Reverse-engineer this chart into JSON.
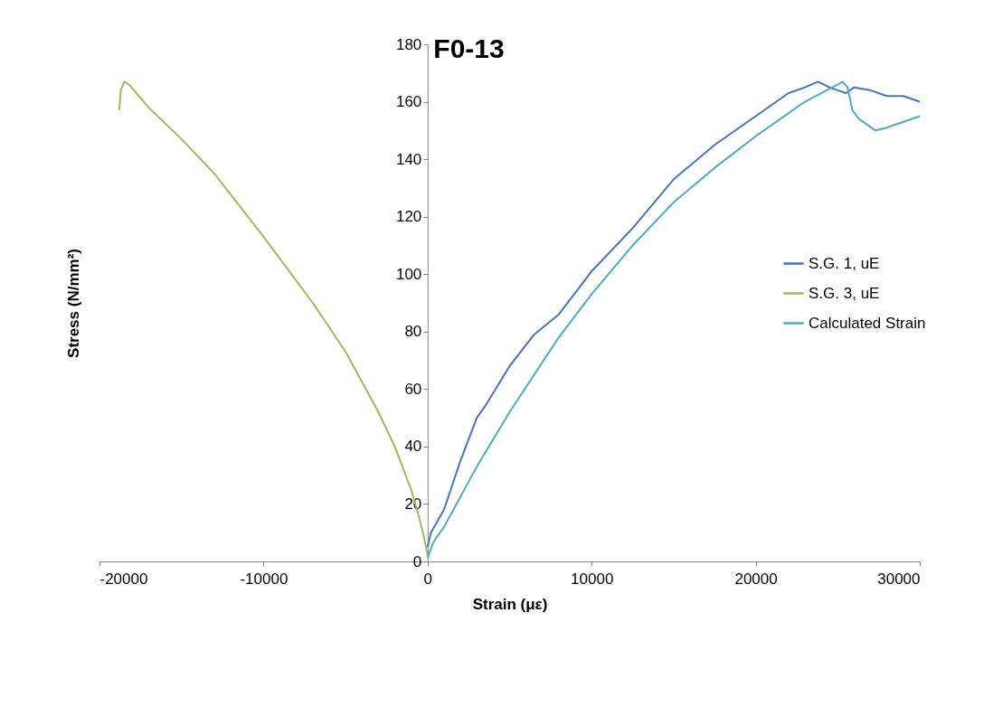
{
  "chart_data": {
    "type": "line",
    "title": "F0-13",
    "xlabel": "Strain (με)",
    "ylabel": "Stress (N/mm²)",
    "xlim": [
      -20000,
      30000
    ],
    "xticks": [
      -20000,
      -10000,
      0,
      10000,
      20000,
      30000
    ],
    "ylim": [
      0,
      180
    ],
    "yticks": [
      0,
      20,
      40,
      60,
      80,
      100,
      120,
      140,
      160,
      180
    ],
    "grid": false,
    "legend": "right",
    "marker": "none",
    "line_style": "solid",
    "series": [
      {
        "name": "S.G.  1, uE",
        "color": "#4472c4",
        "x": [
          0,
          200,
          1000,
          2000,
          3000,
          3500,
          5000,
          6500,
          8000,
          10000,
          12500,
          15000,
          17500,
          20000,
          22000,
          23000,
          23800,
          24500,
          25000,
          25500,
          26000,
          27000,
          28000,
          29000,
          30000
        ],
        "values": [
          5,
          10,
          18,
          35,
          50,
          54,
          68,
          79,
          86,
          101,
          116,
          133,
          145,
          155,
          163,
          165,
          167,
          165,
          164,
          163,
          165,
          164,
          162,
          162,
          160
        ]
      },
      {
        "name": "S.G.  3, uE",
        "color": "#9bbb59",
        "x": [
          0,
          -200,
          -500,
          -1000,
          -2000,
          -3000,
          -5000,
          -7000,
          -10000,
          -13000,
          -15000,
          -17000,
          -18200,
          -18500,
          -18700,
          -18800
        ],
        "values": [
          2,
          8,
          15,
          25,
          40,
          52,
          73,
          90,
          113,
          135,
          147,
          158,
          166,
          167,
          164,
          157
        ]
      },
      {
        "name": "Calculated Strain",
        "color": "#4bacc6",
        "x": [
          0,
          300,
          500,
          1000,
          3000,
          5000,
          8000,
          10000,
          12500,
          15000,
          17500,
          20000,
          23000,
          25000,
          25300,
          25600,
          25900,
          26300,
          27300,
          28000,
          29000,
          30000
        ],
        "values": [
          1,
          6,
          8,
          12,
          33,
          52,
          78,
          93,
          110,
          125,
          137,
          148,
          160,
          166,
          167,
          165,
          157,
          154,
          150,
          151,
          153,
          155
        ]
      }
    ]
  }
}
